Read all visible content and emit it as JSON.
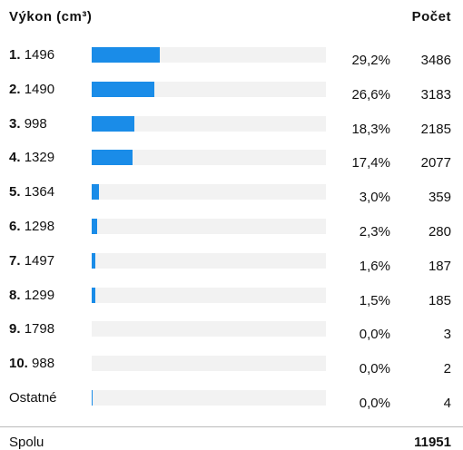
{
  "header": {
    "label": "Výkon (cm³)",
    "count": "Počet"
  },
  "rows": [
    {
      "rank": "1.",
      "name": "1496",
      "share": "29,2%",
      "count": 3486
    },
    {
      "rank": "2.",
      "name": "1490",
      "share": "26,6%",
      "count": 3183
    },
    {
      "rank": "3.",
      "name": "998",
      "share": "18,3%",
      "count": 2185
    },
    {
      "rank": "4.",
      "name": "1329",
      "share": "17,4%",
      "count": 2077
    },
    {
      "rank": "5.",
      "name": "1364",
      "share": "3,0%",
      "count": 359
    },
    {
      "rank": "6.",
      "name": "1298",
      "share": "2,3%",
      "count": 280
    },
    {
      "rank": "7.",
      "name": "1497",
      "share": "1,6%",
      "count": 187
    },
    {
      "rank": "8.",
      "name": "1299",
      "share": "1,5%",
      "count": 185
    },
    {
      "rank": "9.",
      "name": "1798",
      "share": "0,0%",
      "count": 3
    },
    {
      "rank": "10.",
      "name": "988",
      "share": "0,0%",
      "count": 2
    },
    {
      "name": "Ostatné",
      "share": "0,0%",
      "count": 4
    }
  ],
  "total": {
    "label": "Spolu",
    "count": 11951
  }
}
